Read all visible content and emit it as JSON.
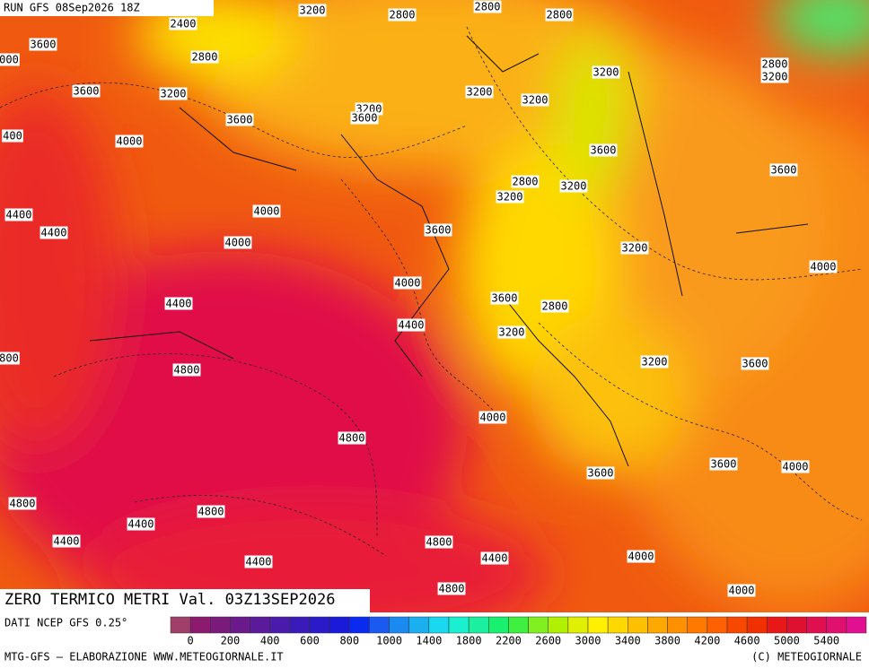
{
  "header": {
    "run": "RUN GFS 08Sep2026 18Z"
  },
  "map": {
    "contour_labels": [
      "3200",
      "2800",
      "2800",
      "2800",
      "2400",
      "3600",
      "2800",
      "2800",
      "3200",
      "3200",
      "3600",
      "3200",
      "3200",
      "3200",
      "3200",
      "3600",
      "3600",
      "4000",
      "3600",
      "3600",
      "2800",
      "3200",
      "3200",
      "4000",
      "4400",
      "4400",
      "3600",
      "4000",
      "3200",
      "4000",
      "4000",
      "3600",
      "4400",
      "2800",
      "4400",
      "3200",
      "3200",
      "3600",
      "4800",
      "4000",
      "4800",
      "3600",
      "4000",
      "3600",
      "4800",
      "4800",
      "4400",
      "4400",
      "4800",
      "4400",
      "4000",
      "4400",
      "4800",
      "4000",
      "000",
      "400",
      "800"
    ]
  },
  "title": "ZERO TERMICO METRI Val. 03Z13SEP2026",
  "source": "DATI NCEP GFS 0.25°",
  "colorbar": {
    "labels": [
      0,
      200,
      400,
      600,
      800,
      1000,
      1400,
      1800,
      2200,
      2600,
      3000,
      3400,
      3800,
      4200,
      4600,
      5000,
      5400
    ],
    "colors": [
      "#a0406a",
      "#8c1a6e",
      "#7a1a7a",
      "#6a1a8a",
      "#5a1a9a",
      "#4a1aaa",
      "#3a1ab8",
      "#2a1ac8",
      "#1a1ad8",
      "#0a2af0",
      "#1a5af0",
      "#1a8af0",
      "#1ab0f0",
      "#1ad8f0",
      "#1af0d0",
      "#1af0a0",
      "#1af070",
      "#40f040",
      "#80f020",
      "#b0f000",
      "#e0f000",
      "#fff000",
      "#ffd800",
      "#ffc000",
      "#ffa800",
      "#ff9000",
      "#ff7800",
      "#ff6000",
      "#f84800",
      "#f03000",
      "#e81818",
      "#e01030",
      "#e01050",
      "#e01070",
      "#e01090"
    ]
  },
  "footer": {
    "left": "MTG-GFS — ELABORAZIONE WWW.METEOGIORNALE.IT",
    "right": "(C) METEOGIORNALE"
  }
}
